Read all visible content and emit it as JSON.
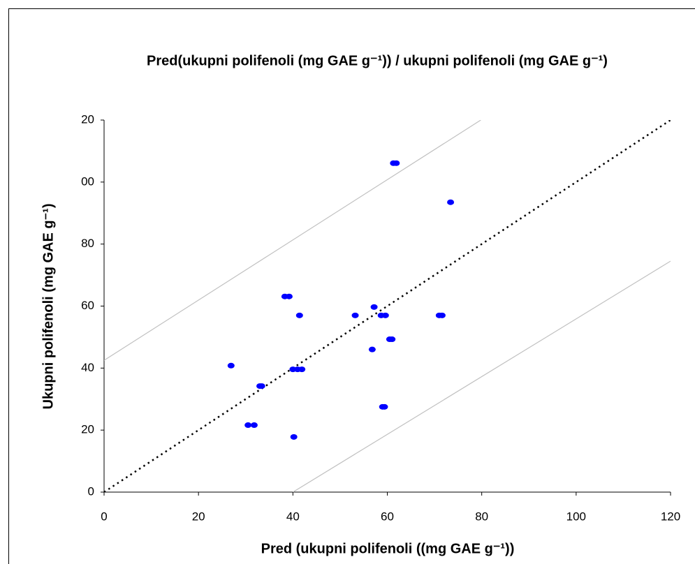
{
  "chart_data": {
    "type": "scatter",
    "title": "Pred(ukupni polifenoli (mg GAE  g⁻¹)) / ukupni polifenoli (mg GAE  g⁻¹)",
    "x_label": "Pred (ukupni polifenoli ((mg GAE  g⁻¹))",
    "y_label": "Ukupni polifenoli (mg GAE  g⁻¹)",
    "series": [
      {
        "color": "#0000ff",
        "x": [
          26.9,
          30.5,
          31.8,
          33.0,
          33.4,
          38.3,
          39.2,
          41.4,
          40.0,
          41.0,
          41.9,
          40.2,
          53.2,
          57.2,
          56.8,
          58.7,
          59.6,
          59.0,
          59.4,
          60.5,
          61.0,
          61.3,
          61.9,
          71.0,
          71.6,
          73.4
        ],
        "values": [
          40.8,
          21.6,
          21.6,
          34.2,
          34.2,
          63.1,
          63.1,
          57.0,
          39.6,
          39.6,
          39.6,
          17.8,
          57.0,
          59.7,
          46.0,
          57.0,
          57.0,
          27.5,
          27.5,
          49.3,
          49.3,
          106.1,
          106.1,
          57.0,
          57.0,
          93.5
        ]
      }
    ],
    "lines": [
      {
        "color": "#000000",
        "dash": true,
        "x": [
          0,
          120
        ],
        "values": [
          0,
          120
        ]
      },
      {
        "color": "#c0c0c0",
        "dash": false,
        "x": [
          0,
          79.8
        ],
        "values": [
          42.5,
          120
        ]
      },
      {
        "color": "#c0c0c0",
        "dash": false,
        "x": [
          40,
          120
        ],
        "values": [
          0,
          74.5
        ]
      }
    ],
    "xlim": [
      0,
      120
    ],
    "xticks": [
      0,
      20,
      40,
      60,
      80,
      100,
      120
    ],
    "ylim": [
      0,
      120
    ],
    "yticks": [
      0,
      20,
      40,
      60,
      80,
      {
        "value": 100,
        "label": "00"
      },
      {
        "value": 120,
        "label": "20"
      }
    ]
  }
}
